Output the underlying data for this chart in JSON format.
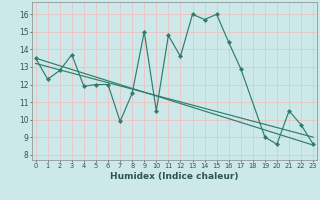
{
  "title": "",
  "xlabel": "Humidex (Indice chaleur)",
  "background_color": "#cde8e8",
  "grid_color": "#e8c8c8",
  "line_color": "#2e7d6e",
  "x_ticks": [
    0,
    1,
    2,
    3,
    4,
    5,
    6,
    7,
    8,
    9,
    10,
    11,
    12,
    13,
    14,
    15,
    16,
    17,
    18,
    19,
    20,
    21,
    22,
    23
  ],
  "y_ticks": [
    8,
    9,
    10,
    11,
    12,
    13,
    14,
    15,
    16
  ],
  "xlim": [
    -0.3,
    23.3
  ],
  "ylim": [
    7.7,
    16.7
  ],
  "series1_x": [
    0,
    1,
    2,
    3,
    4,
    5,
    6,
    7,
    8,
    9,
    10,
    11,
    12,
    13,
    14,
    15,
    16,
    17,
    19,
    20,
    21,
    22,
    23
  ],
  "series1_y": [
    13.5,
    12.3,
    12.8,
    13.7,
    11.9,
    12.0,
    12.0,
    9.9,
    11.5,
    15.0,
    10.5,
    14.8,
    13.6,
    16.0,
    15.7,
    16.0,
    14.4,
    12.9,
    9.0,
    8.6,
    10.5,
    9.7,
    8.6
  ],
  "series2_x": [
    0,
    23
  ],
  "series2_y": [
    13.5,
    8.55
  ],
  "series3_x": [
    0,
    23
  ],
  "series3_y": [
    13.2,
    9.0
  ]
}
